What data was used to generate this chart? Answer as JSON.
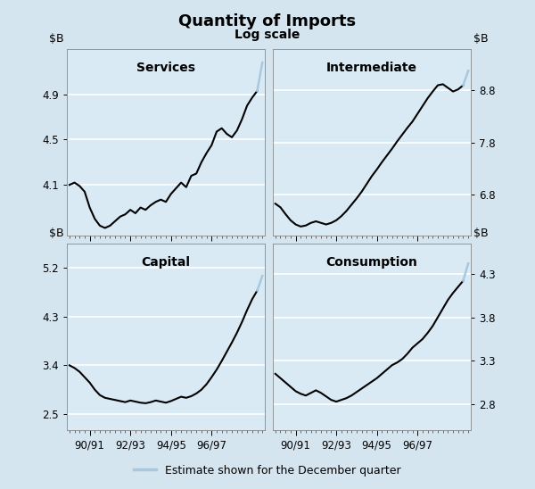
{
  "title": "Quantity of Imports",
  "subtitle": "Log scale",
  "bg_color": "#d5e5f0",
  "plot_bg_color": "#daeaf5",
  "legend_label": "Estimate shown for the December quarter",
  "legend_color": "#a8c8e0",
  "xtick_labels": [
    "90/91",
    "92/93",
    "94/95",
    "96/97"
  ],
  "services_yticks": [
    4.1,
    4.5,
    4.9
  ],
  "services_ylim": [
    3.65,
    5.3
  ],
  "intermediate_yticks": [
    6.8,
    7.8,
    8.8
  ],
  "intermediate_ylim": [
    6.0,
    9.6
  ],
  "capital_yticks": [
    2.5,
    3.4,
    4.3,
    5.2
  ],
  "capital_ylim": [
    2.2,
    5.65
  ],
  "consumption_yticks": [
    2.8,
    3.3,
    3.8,
    4.3
  ],
  "consumption_ylim": [
    2.5,
    4.65
  ],
  "services_data": [
    4.1,
    4.12,
    4.09,
    4.04,
    3.9,
    3.8,
    3.74,
    3.72,
    3.74,
    3.78,
    3.82,
    3.84,
    3.88,
    3.85,
    3.9,
    3.88,
    3.92,
    3.95,
    3.97,
    3.95,
    4.02,
    4.07,
    4.12,
    4.08,
    4.18,
    4.2,
    4.3,
    4.38,
    4.45,
    4.57,
    4.6,
    4.55,
    4.52,
    4.58,
    4.68,
    4.8,
    4.87,
    4.93
  ],
  "services_estimate": [
    4.93,
    5.18
  ],
  "intermediate_data": [
    6.62,
    6.55,
    6.42,
    6.3,
    6.22,
    6.18,
    6.2,
    6.25,
    6.28,
    6.25,
    6.22,
    6.25,
    6.3,
    6.38,
    6.48,
    6.6,
    6.72,
    6.85,
    7.0,
    7.15,
    7.28,
    7.42,
    7.55,
    7.68,
    7.82,
    7.95,
    8.08,
    8.2,
    8.35,
    8.5,
    8.65,
    8.78,
    8.9,
    8.92,
    8.85,
    8.78,
    8.82,
    8.9
  ],
  "intermediate_estimate": [
    8.9,
    9.18
  ],
  "capital_data": [
    3.4,
    3.35,
    3.28,
    3.18,
    3.08,
    2.95,
    2.85,
    2.8,
    2.78,
    2.76,
    2.74,
    2.72,
    2.75,
    2.73,
    2.71,
    2.7,
    2.72,
    2.75,
    2.73,
    2.71,
    2.74,
    2.78,
    2.82,
    2.8,
    2.83,
    2.88,
    2.95,
    3.05,
    3.18,
    3.32,
    3.48,
    3.65,
    3.82,
    4.0,
    4.2,
    4.42,
    4.62,
    4.78
  ],
  "capital_estimate": [
    4.78,
    5.05
  ],
  "consumption_data": [
    3.15,
    3.1,
    3.05,
    3.0,
    2.95,
    2.92,
    2.9,
    2.93,
    2.96,
    2.93,
    2.89,
    2.85,
    2.83,
    2.85,
    2.87,
    2.9,
    2.94,
    2.98,
    3.02,
    3.06,
    3.1,
    3.15,
    3.2,
    3.25,
    3.28,
    3.32,
    3.38,
    3.45,
    3.5,
    3.55,
    3.62,
    3.7,
    3.8,
    3.9,
    4.0,
    4.08,
    4.15,
    4.22
  ],
  "consumption_estimate": [
    4.22,
    4.42
  ]
}
